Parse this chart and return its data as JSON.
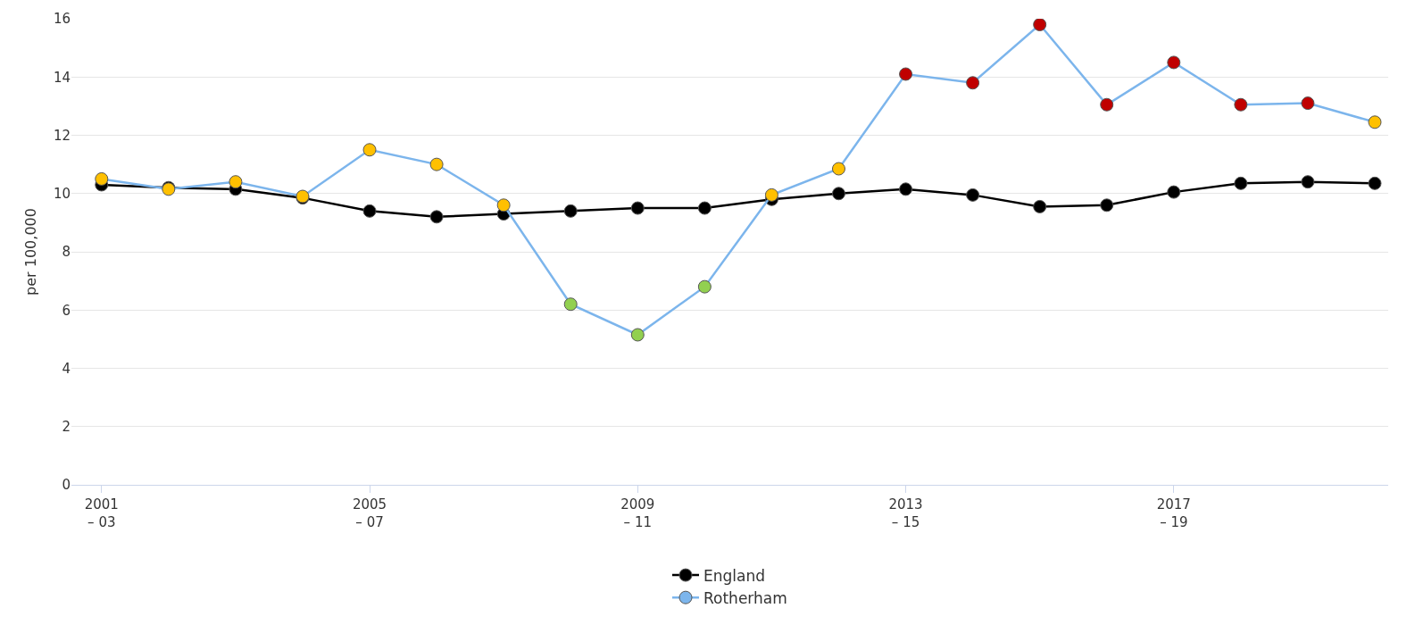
{
  "chart_data": {
    "type": "line",
    "ylabel": "per 100,000",
    "categories": [
      "2001\n– 03",
      null,
      null,
      null,
      "2005\n– 07",
      null,
      null,
      null,
      "2009\n– 11",
      null,
      null,
      null,
      "2013\n– 15",
      null,
      null,
      null,
      "2017\n– 19",
      null,
      null,
      null
    ],
    "series": [
      {
        "name": "England",
        "color": "#000000",
        "values": [
          10.3,
          10.2,
          10.15,
          9.85,
          9.4,
          9.2,
          9.3,
          9.4,
          9.5,
          9.5,
          9.8,
          10.0,
          10.15,
          9.95,
          9.55,
          9.6,
          10.05,
          10.35,
          10.4,
          10.35
        ]
      },
      {
        "name": "Rotherham",
        "color": "#7cb5ec",
        "values": [
          10.5,
          10.15,
          10.4,
          9.9,
          11.5,
          11.0,
          9.6,
          6.2,
          5.15,
          6.8,
          9.95,
          10.85,
          14.1,
          13.8,
          15.8,
          13.05,
          14.5,
          13.05,
          13.1,
          12.45
        ],
        "colors": [
          "#ffc000",
          "#ffc000",
          "#ffc000",
          "#ffc000",
          "#ffc000",
          "#ffc000",
          "#ffc000",
          "#92d050",
          "#92d050",
          "#92d050",
          "#ffc000",
          "#ffc000",
          "#c00000",
          "#c00000",
          "#c00000",
          "#c00000",
          "#c00000",
          "#c00000",
          "#c00000",
          "#ffc000"
        ]
      }
    ],
    "ylim": [
      0,
      16
    ],
    "yticks": [
      0,
      2,
      4,
      6,
      8,
      10,
      12,
      14,
      16
    ],
    "grid": "y",
    "legend": "bottom",
    "marker": "circle",
    "line_style": "solid"
  }
}
